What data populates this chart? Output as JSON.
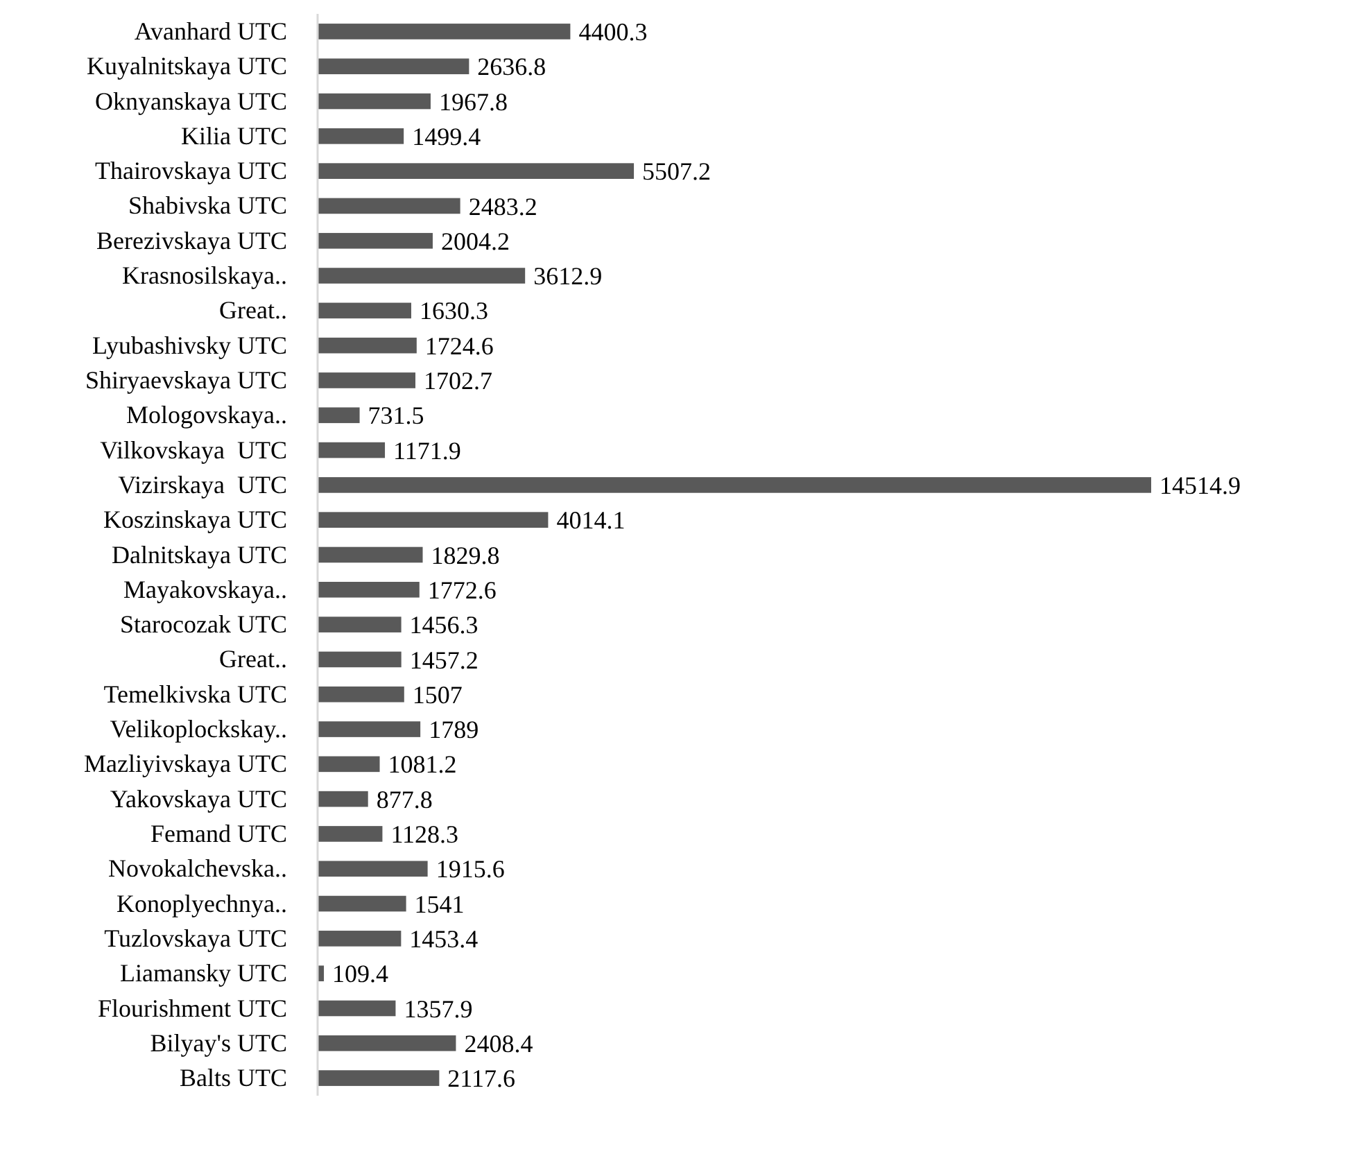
{
  "chart_data": {
    "type": "bar",
    "orientation": "horizontal",
    "relative": false,
    "data_labels": true,
    "color": "#595959",
    "categories": [
      "Avanhard UTC",
      "Kuyalnitskaya UTC",
      "Oknyanskaya UTC",
      "Kilia UTC",
      "Thairovskaya UTC",
      "Shabivska UTC",
      "Berezivskaya UTC",
      "Krasnosilskaya..",
      "Great..",
      "Lyubashivsky UTC",
      "Shiryaevskaya UTC",
      "Mologovskaya..",
      "Vilkovskaya  UTC",
      "Vizirskaya  UTC",
      "Koszinskaya UTC",
      "Dalnitskaya UTC",
      "Mayakovskaya..",
      "Starocozak UTC",
      "Great..",
      "Temelkivska UTC",
      "Velikoplockskay..",
      "Mazliyivskaya UTC",
      "Yakovskaya UTC",
      "Femand UTC",
      "Novokalchevska..",
      "Konoplyechnya..",
      "Tuzlovskaya UTC",
      "Liamansky UTC",
      "Flourishment UTC",
      "Bilyay's UTC",
      "Balts UTC"
    ],
    "values": [
      4400.3,
      2636.8,
      1967.8,
      1499.4,
      5507.2,
      2483.2,
      2004.2,
      3612.9,
      1630.3,
      1724.6,
      1702.7,
      731.5,
      1171.9,
      14514.9,
      4014.1,
      1829.8,
      1772.6,
      1456.3,
      1457.2,
      1507,
      1789,
      1081.2,
      877.8,
      1128.3,
      1915.6,
      1541,
      1453.4,
      109.4,
      1357.9,
      2408.4,
      2117.6
    ]
  }
}
